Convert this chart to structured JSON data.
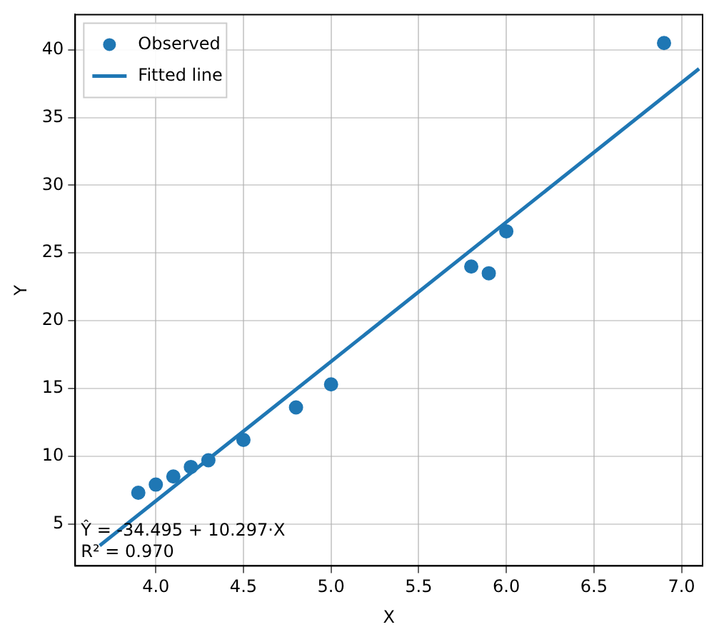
{
  "chart_data": {
    "type": "scatter",
    "xlabel": "X",
    "ylabel": "Y",
    "xlim": [
      3.54,
      7.12
    ],
    "ylim": [
      1.9,
      42.6
    ],
    "xticks": [
      {
        "value": 4,
        "label": "4.0"
      },
      {
        "value": 4.5,
        "label": "4.5"
      },
      {
        "value": 5,
        "label": "5.0"
      },
      {
        "value": 5.5,
        "label": "5.5"
      },
      {
        "value": 6,
        "label": "6.0"
      },
      {
        "value": 6.5,
        "label": "6.5"
      },
      {
        "value": 7,
        "label": "7.0"
      }
    ],
    "yticks": [
      5,
      10,
      15,
      20,
      25,
      30,
      35,
      40
    ],
    "grid": true,
    "legend": "top left",
    "series": [
      {
        "name": "Observed",
        "marker": "circle",
        "color": "#1f77b4",
        "x": [
          3.9,
          4.0,
          4.1,
          4.2,
          4.3,
          4.5,
          4.8,
          5.0,
          5.8,
          5.9,
          6.0,
          6.9
        ],
        "values": [
          7.3,
          7.9,
          8.5,
          9.2,
          9.7,
          11.2,
          13.6,
          15.3,
          24.0,
          23.5,
          26.6,
          40.5
        ]
      },
      {
        "name": "Fitted line",
        "type": "line",
        "color": "#1f77b4",
        "x": [
          3.68,
          7.1
        ],
        "values": [
          3.4,
          38.6
        ]
      }
    ],
    "annotations": [
      "Ŷ = -34.495 + 10.297·X",
      "R² = 0.970"
    ]
  }
}
